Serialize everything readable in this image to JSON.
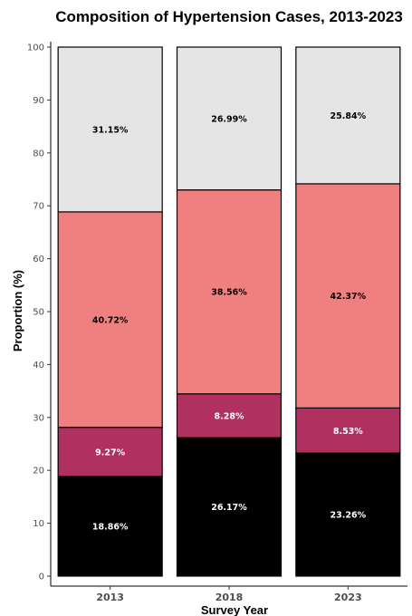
{
  "chart_data": {
    "type": "bar",
    "stacked": true,
    "title": "Composition of Hypertension Cases, 2013-2023",
    "xlabel": "Survey Year",
    "ylabel": "Proportion (%)",
    "ylim": [
      0,
      100
    ],
    "yticks": [
      0,
      10,
      20,
      30,
      40,
      50,
      60,
      70,
      80,
      90,
      100
    ],
    "categories": [
      "2013",
      "2018",
      "2023"
    ],
    "grid": false,
    "legend": "none",
    "series": [
      {
        "color": "#000000",
        "label_color": "#ffffff",
        "values": [
          18.86,
          26.17,
          23.26
        ],
        "labels": [
          "18.86%",
          "26.17%",
          "23.26%"
        ]
      },
      {
        "color": "#b03060",
        "label_color": "#ffffff",
        "values": [
          9.27,
          8.28,
          8.53
        ],
        "labels": [
          "9.27%",
          "8.28%",
          "8.53%"
        ]
      },
      {
        "color": "#f08080",
        "label_color": "#000000",
        "values": [
          40.72,
          38.56,
          42.37
        ],
        "labels": [
          "40.72%",
          "38.56%",
          "42.37%"
        ]
      },
      {
        "color": "#e5e5e5",
        "label_color": "#000000",
        "values": [
          31.15,
          26.99,
          25.84
        ],
        "labels": [
          "31.15%",
          "26.99%",
          "25.84%"
        ]
      }
    ]
  }
}
